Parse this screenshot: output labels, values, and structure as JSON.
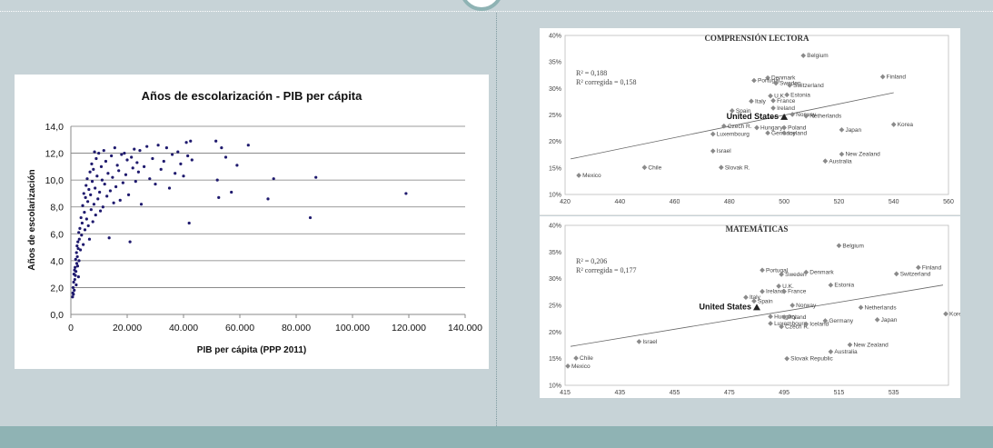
{
  "colors": {
    "background": "#c7d3d7",
    "band": "#8fb3b4",
    "scatter_point": "#1f1a6e",
    "country_point": "#8a8a8a"
  },
  "chart_data": [
    {
      "type": "scatter",
      "title": "Años de escolarización - PIB per cápita",
      "xlabel": "PIB per cápita (PPP 2011)",
      "ylabel": "Años de escolarización",
      "xlim": [
        0,
        140000
      ],
      "ylim": [
        0,
        14
      ],
      "x_ticks": [
        "0",
        "20.000",
        "40.000",
        "60.000",
        "80.000",
        "100.000",
        "120.000",
        "140.000"
      ],
      "y_ticks": [
        "0,0",
        "2,0",
        "4,0",
        "6,0",
        "8,0",
        "10,0",
        "12,0",
        "14,0"
      ],
      "grid": true,
      "points": [
        [
          600,
          1.3
        ],
        [
          700,
          1.6
        ],
        [
          800,
          2.0
        ],
        [
          900,
          1.5
        ],
        [
          1000,
          2.4
        ],
        [
          1100,
          3.0
        ],
        [
          1200,
          1.8
        ],
        [
          1300,
          3.3
        ],
        [
          1400,
          2.6
        ],
        [
          1500,
          3.5
        ],
        [
          1600,
          2.9
        ],
        [
          1700,
          4.1
        ],
        [
          1800,
          3.2
        ],
        [
          1900,
          2.2
        ],
        [
          2000,
          4.6
        ],
        [
          2100,
          3.8
        ],
        [
          2200,
          5.1
        ],
        [
          2300,
          4.3
        ],
        [
          2400,
          3.6
        ],
        [
          2500,
          5.4
        ],
        [
          2600,
          4.9
        ],
        [
          2700,
          2.8
        ],
        [
          2800,
          6.1
        ],
        [
          2900,
          4.0
        ],
        [
          3000,
          5.6
        ],
        [
          3200,
          6.4
        ],
        [
          3400,
          4.8
        ],
        [
          3600,
          7.2
        ],
        [
          3800,
          5.9
        ],
        [
          4000,
          6.8
        ],
        [
          4200,
          8.1
        ],
        [
          4400,
          5.2
        ],
        [
          4600,
          9.0
        ],
        [
          4800,
          7.6
        ],
        [
          5000,
          6.3
        ],
        [
          5200,
          8.7
        ],
        [
          5400,
          9.6
        ],
        [
          5600,
          7.1
        ],
        [
          5800,
          10.1
        ],
        [
          6000,
          8.4
        ],
        [
          6200,
          6.6
        ],
        [
          6400,
          9.3
        ],
        [
          6600,
          5.6
        ],
        [
          6800,
          10.6
        ],
        [
          7000,
          8.9
        ],
        [
          7200,
          7.8
        ],
        [
          7400,
          11.2
        ],
        [
          7600,
          9.9
        ],
        [
          7800,
          6.9
        ],
        [
          8000,
          10.8
        ],
        [
          8200,
          8.2
        ],
        [
          8400,
          12.1
        ],
        [
          8600,
          9.4
        ],
        [
          8800,
          7.4
        ],
        [
          9000,
          11.6
        ],
        [
          9300,
          10.3
        ],
        [
          9600,
          8.6
        ],
        [
          9900,
          12.0
        ],
        [
          10200,
          9.1
        ],
        [
          10500,
          7.7
        ],
        [
          10800,
          11.0
        ],
        [
          11100,
          10.0
        ],
        [
          11400,
          8.0
        ],
        [
          11700,
          12.2
        ],
        [
          12000,
          9.7
        ],
        [
          12400,
          11.4
        ],
        [
          12800,
          8.8
        ],
        [
          13200,
          10.5
        ],
        [
          13600,
          5.7
        ],
        [
          14000,
          9.2
        ],
        [
          14400,
          11.8
        ],
        [
          14800,
          10.2
        ],
        [
          15200,
          8.3
        ],
        [
          15600,
          12.4
        ],
        [
          16000,
          9.5
        ],
        [
          16500,
          11.1
        ],
        [
          17000,
          10.7
        ],
        [
          17500,
          8.5
        ],
        [
          18000,
          11.9
        ],
        [
          18500,
          9.8
        ],
        [
          19000,
          12.0
        ],
        [
          19500,
          10.4
        ],
        [
          20000,
          11.5
        ],
        [
          20500,
          8.9
        ],
        [
          21000,
          5.4
        ],
        [
          21500,
          11.7
        ],
        [
          22000,
          10.9
        ],
        [
          22500,
          12.3
        ],
        [
          23000,
          9.9
        ],
        [
          23500,
          11.3
        ],
        [
          24000,
          10.6
        ],
        [
          24500,
          12.2
        ],
        [
          25000,
          8.2
        ],
        [
          26000,
          11.0
        ],
        [
          27000,
          12.5
        ],
        [
          28000,
          10.1
        ],
        [
          29000,
          11.6
        ],
        [
          30000,
          9.7
        ],
        [
          31000,
          12.6
        ],
        [
          32000,
          10.8
        ],
        [
          33000,
          11.4
        ],
        [
          34000,
          12.4
        ],
        [
          35000,
          9.4
        ],
        [
          36000,
          11.9
        ],
        [
          37000,
          10.5
        ],
        [
          38000,
          12.1
        ],
        [
          39000,
          11.2
        ],
        [
          40000,
          10.3
        ],
        [
          41000,
          12.8
        ],
        [
          41500,
          11.8
        ],
        [
          42000,
          6.8
        ],
        [
          42500,
          12.9
        ],
        [
          43000,
          11.5
        ],
        [
          51500,
          12.9
        ],
        [
          52000,
          10.0
        ],
        [
          52500,
          8.7
        ],
        [
          53500,
          12.4
        ],
        [
          55000,
          11.7
        ],
        [
          57000,
          9.1
        ],
        [
          59000,
          11.1
        ],
        [
          63000,
          12.6
        ],
        [
          70000,
          8.6
        ],
        [
          72000,
          10.1
        ],
        [
          85000,
          7.2
        ],
        [
          87000,
          10.2
        ],
        [
          119000,
          9.0
        ]
      ]
    },
    {
      "type": "scatter",
      "title": "COMPRENSIÓN LECTORA",
      "annotations": [
        "R² = 0,188",
        "R² corregida = 0,158"
      ],
      "xlim": [
        420,
        560
      ],
      "ylim": [
        10,
        40
      ],
      "x_ticks": [
        "420",
        "440",
        "460",
        "480",
        "500",
        "520",
        "540",
        "560"
      ],
      "y_ticks": [
        "10%",
        "15%",
        "20%",
        "25%",
        "30%",
        "35%",
        "40%"
      ],
      "highlight": "United States",
      "points": [
        {
          "label": "Belgium",
          "x": 507,
          "y": 36.2
        },
        {
          "label": "Finland",
          "x": 536,
          "y": 32.2
        },
        {
          "label": "Denmark",
          "x": 494,
          "y": 32.0
        },
        {
          "label": "Portugal",
          "x": 489,
          "y": 31.5
        },
        {
          "label": "Sweden",
          "x": 497,
          "y": 31.0
        },
        {
          "label": "Switzerland",
          "x": 502,
          "y": 30.6
        },
        {
          "label": "U.K.",
          "x": 495,
          "y": 28.6
        },
        {
          "label": "Estonia",
          "x": 501,
          "y": 28.8
        },
        {
          "label": "Italy",
          "x": 488,
          "y": 27.6
        },
        {
          "label": "France",
          "x": 496,
          "y": 27.7
        },
        {
          "label": "Spain",
          "x": 481,
          "y": 25.8
        },
        {
          "label": "Ireland",
          "x": 496,
          "y": 26.3
        },
        {
          "label": "Norway",
          "x": 503,
          "y": 25.1
        },
        {
          "label": "Netherlands",
          "x": 508,
          "y": 24.8
        },
        {
          "label": "Czech R.",
          "x": 478,
          "y": 22.9
        },
        {
          "label": "Hungary",
          "x": 490,
          "y": 22.6
        },
        {
          "label": "Poland",
          "x": 500,
          "y": 22.6
        },
        {
          "label": "Japan",
          "x": 521,
          "y": 22.2
        },
        {
          "label": "Korea",
          "x": 540,
          "y": 23.2
        },
        {
          "label": "Luxembourg",
          "x": 474,
          "y": 21.4
        },
        {
          "label": "Germany",
          "x": 494,
          "y": 21.6
        },
        {
          "label": "Iceland",
          "x": 500,
          "y": 21.6
        },
        {
          "label": "Israel",
          "x": 474,
          "y": 18.2
        },
        {
          "label": "New Zealand",
          "x": 521,
          "y": 17.6
        },
        {
          "label": "Australia",
          "x": 515,
          "y": 16.3
        },
        {
          "label": "Chile",
          "x": 449,
          "y": 15.1
        },
        {
          "label": "Slovak R.",
          "x": 477,
          "y": 15.1
        },
        {
          "label": "Mexico",
          "x": 425,
          "y": 13.6
        },
        {
          "label": "United States",
          "x": 500,
          "y": 24.6
        }
      ],
      "trend": [
        [
          422,
          16.7
        ],
        [
          540,
          29.2
        ]
      ]
    },
    {
      "type": "scatter",
      "title": "MATEMÁTICAS",
      "annotations": [
        "R² = 0,206",
        "R² corregida = 0,177"
      ],
      "xlim": [
        415,
        555
      ],
      "ylim": [
        10,
        40
      ],
      "x_ticks": [
        "415",
        "435",
        "455",
        "475",
        "495",
        "515",
        "535"
      ],
      "y_ticks": [
        "10%",
        "15%",
        "20%",
        "25%",
        "30%",
        "35%",
        "40%"
      ],
      "highlight": "United States",
      "points": [
        {
          "label": "Belgium",
          "x": 515,
          "y": 36.2
        },
        {
          "label": "Finland",
          "x": 544,
          "y": 32.1
        },
        {
          "label": "Switzerland",
          "x": 536,
          "y": 30.9
        },
        {
          "label": "Portugal",
          "x": 487,
          "y": 31.6
        },
        {
          "label": "Sweden",
          "x": 494,
          "y": 30.8
        },
        {
          "label": "Denmark",
          "x": 503,
          "y": 31.2
        },
        {
          "label": "U.K.",
          "x": 493,
          "y": 28.6
        },
        {
          "label": "Estonia",
          "x": 512,
          "y": 28.8
        },
        {
          "label": "Ireland",
          "x": 487,
          "y": 27.6
        },
        {
          "label": "France",
          "x": 495,
          "y": 27.6
        },
        {
          "label": "Italy",
          "x": 481,
          "y": 26.5
        },
        {
          "label": "Spain",
          "x": 484,
          "y": 25.8
        },
        {
          "label": "Norway",
          "x": 498,
          "y": 25.0
        },
        {
          "label": "Netherlands",
          "x": 523,
          "y": 24.6
        },
        {
          "label": "Korea",
          "x": 554,
          "y": 23.4
        },
        {
          "label": "Hungary",
          "x": 490,
          "y": 22.9
        },
        {
          "label": "Poland",
          "x": 495,
          "y": 22.8
        },
        {
          "label": "Germany",
          "x": 510,
          "y": 22.1
        },
        {
          "label": "Japan",
          "x": 529,
          "y": 22.3
        },
        {
          "label": "Luxembourg",
          "x": 490,
          "y": 21.6
        },
        {
          "label": "Czech R.",
          "x": 494,
          "y": 21.0
        },
        {
          "label": "Iceland",
          "x": 503,
          "y": 21.5
        },
        {
          "label": "Israel",
          "x": 442,
          "y": 18.2
        },
        {
          "label": "New Zealand",
          "x": 519,
          "y": 17.6
        },
        {
          "label": "Australia",
          "x": 512,
          "y": 16.3
        },
        {
          "label": "Chile",
          "x": 419,
          "y": 15.1
        },
        {
          "label": "Slovak Republic",
          "x": 496,
          "y": 15.0
        },
        {
          "label": "Mexico",
          "x": 416,
          "y": 13.6
        },
        {
          "label": "United States",
          "x": 485,
          "y": 24.6
        }
      ],
      "trend": [
        [
          417,
          17.3
        ],
        [
          553,
          28.8
        ]
      ]
    }
  ]
}
